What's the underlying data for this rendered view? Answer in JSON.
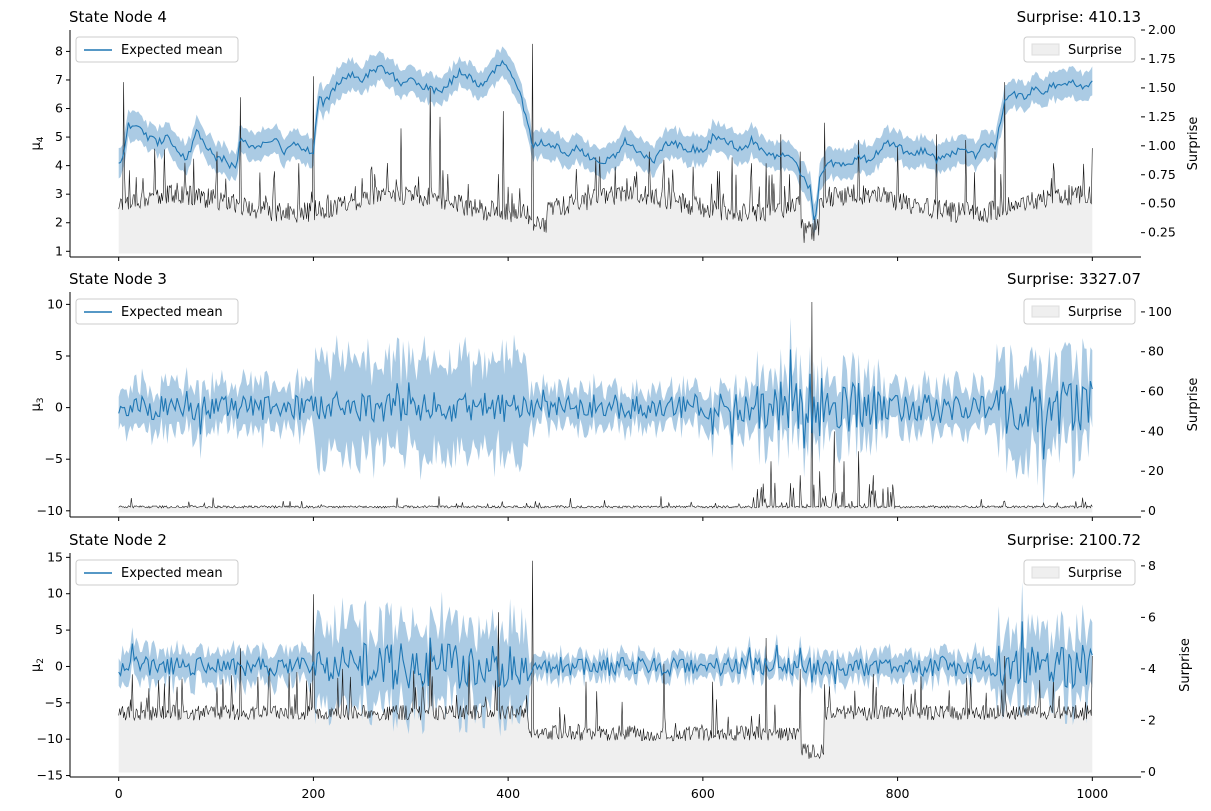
{
  "chart_data": [
    {
      "type": "line",
      "title": "State Node 4",
      "surprise_text": "Surprise: 410.13",
      "ylabel": "μ",
      "ylabel_sub": "4",
      "ylabel_right": "Surprise",
      "xlim": [
        -50,
        1050
      ],
      "ylim": [
        0.8,
        8.75
      ],
      "ylim_right": [
        0.04,
        2.0
      ],
      "yticks": [
        1,
        2,
        3,
        4,
        5,
        6,
        7,
        8
      ],
      "yticks_right": [
        0.25,
        0.5,
        0.75,
        1.0,
        1.25,
        1.5,
        1.75,
        2.0
      ],
      "ytick_right_labels": [
        "0.25",
        "0.50",
        "0.75",
        "1.00",
        "1.25",
        "1.50",
        "1.75",
        "2.00"
      ],
      "legend_left": "Expected mean",
      "legend_right": "Surprise",
      "legend_placement": [
        "upper-left",
        "upper-right"
      ],
      "mean_line": {
        "name": "Expected mean",
        "x": [
          0,
          5,
          10,
          20,
          30,
          40,
          50,
          60,
          70,
          80,
          90,
          100,
          110,
          115,
          120,
          125,
          130,
          140,
          150,
          160,
          170,
          180,
          190,
          200,
          205,
          210,
          220,
          230,
          240,
          250,
          260,
          270,
          280,
          290,
          300,
          310,
          320,
          330,
          340,
          350,
          360,
          370,
          380,
          390,
          400,
          410,
          420,
          425,
          430,
          440,
          450,
          460,
          470,
          480,
          490,
          500,
          510,
          520,
          530,
          540,
          550,
          560,
          570,
          580,
          590,
          600,
          610,
          620,
          630,
          640,
          650,
          660,
          670,
          680,
          690,
          700,
          710,
          715,
          720,
          730,
          740,
          750,
          760,
          770,
          780,
          790,
          800,
          810,
          820,
          830,
          840,
          850,
          860,
          870,
          880,
          890,
          900,
          910,
          920,
          930,
          940,
          950,
          960,
          970,
          980,
          990,
          1000
        ],
        "y": [
          4.0,
          4.3,
          5.4,
          5.3,
          5.0,
          4.8,
          5.0,
          4.6,
          4.2,
          5.2,
          4.7,
          4.3,
          4.2,
          4.0,
          3.9,
          4.9,
          4.8,
          4.6,
          4.8,
          5.0,
          4.5,
          4.8,
          4.6,
          4.5,
          6.4,
          6.2,
          6.6,
          7.1,
          7.2,
          7.0,
          7.3,
          7.4,
          7.2,
          6.9,
          7.0,
          6.8,
          6.7,
          6.6,
          6.9,
          7.3,
          7.1,
          6.8,
          7.0,
          7.6,
          7.5,
          6.7,
          5.6,
          4.6,
          4.8,
          4.8,
          4.7,
          4.3,
          4.6,
          4.4,
          4.1,
          4.2,
          4.3,
          4.9,
          4.6,
          4.3,
          4.2,
          4.7,
          4.8,
          4.6,
          4.6,
          4.5,
          5.0,
          4.9,
          4.8,
          4.5,
          4.9,
          4.6,
          4.3,
          4.4,
          4.4,
          3.8,
          3.2,
          1.8,
          3.6,
          4.1,
          4.0,
          4.1,
          4.3,
          4.2,
          4.5,
          4.8,
          4.7,
          4.4,
          4.5,
          4.5,
          4.2,
          4.3,
          4.5,
          4.6,
          4.3,
          4.8,
          4.6,
          6.3,
          6.5,
          6.4,
          6.7,
          6.6,
          6.8,
          6.9,
          6.9,
          6.7,
          7.0
        ]
      },
      "band_halfwidth": 0.5,
      "surprise_baseline": 0.07,
      "surprise_spikes": [
        {
          "x": 5,
          "y": 1.55
        },
        {
          "x": 25,
          "y": 0.72
        },
        {
          "x": 40,
          "y": 0.62
        },
        {
          "x": 60,
          "y": 0.68
        },
        {
          "x": 80,
          "y": 0.62
        },
        {
          "x": 100,
          "y": 0.7
        },
        {
          "x": 125,
          "y": 1.42
        },
        {
          "x": 160,
          "y": 0.78
        },
        {
          "x": 185,
          "y": 0.85
        },
        {
          "x": 200,
          "y": 1.6
        },
        {
          "x": 250,
          "y": 0.72
        },
        {
          "x": 290,
          "y": 1.15
        },
        {
          "x": 320,
          "y": 1.5
        },
        {
          "x": 330,
          "y": 1.25
        },
        {
          "x": 395,
          "y": 1.3
        },
        {
          "x": 425,
          "y": 1.88
        },
        {
          "x": 470,
          "y": 0.8
        },
        {
          "x": 490,
          "y": 0.9
        },
        {
          "x": 510,
          "y": 0.82
        },
        {
          "x": 545,
          "y": 0.95
        },
        {
          "x": 560,
          "y": 0.88
        },
        {
          "x": 590,
          "y": 0.82
        },
        {
          "x": 630,
          "y": 0.9
        },
        {
          "x": 650,
          "y": 0.85
        },
        {
          "x": 665,
          "y": 0.85
        },
        {
          "x": 680,
          "y": 1.1
        },
        {
          "x": 700,
          "y": 0.95
        },
        {
          "x": 725,
          "y": 1.2
        },
        {
          "x": 760,
          "y": 1.05
        },
        {
          "x": 800,
          "y": 1.0
        },
        {
          "x": 840,
          "y": 1.1
        },
        {
          "x": 870,
          "y": 1.05
        },
        {
          "x": 900,
          "y": 0.95
        },
        {
          "x": 910,
          "y": 1.55
        },
        {
          "x": 960,
          "y": 0.85
        },
        {
          "x": 1000,
          "y": 0.98
        }
      ]
    },
    {
      "type": "line",
      "title": "State Node 3",
      "surprise_text": "Surprise: 3327.07",
      "ylabel": "μ",
      "ylabel_sub": "3",
      "ylabel_right": "Surprise",
      "xlim": [
        -50,
        1050
      ],
      "ylim": [
        -10.6,
        11.2
      ],
      "ylim_right": [
        -3,
        110
      ],
      "yticks": [
        -10,
        -5,
        0,
        5,
        10
      ],
      "ytick_labels": [
        "−10",
        "−5",
        "0",
        "5",
        "10"
      ],
      "yticks_right": [
        0,
        20,
        40,
        60,
        80,
        100
      ],
      "ytick_right_labels": [
        "0",
        "20",
        "40",
        "60",
        "80",
        "100"
      ],
      "legend_left": "Expected mean",
      "legend_right": "Surprise",
      "legend_placement": [
        "upper-left",
        "upper-right"
      ],
      "mean_amplitude": [
        {
          "x0": 0,
          "x1": 200,
          "amp": 1.2
        },
        {
          "x0": 200,
          "x1": 420,
          "amp": 1.5
        },
        {
          "x0": 420,
          "x1": 600,
          "amp": 1.1
        },
        {
          "x0": 600,
          "x1": 650,
          "amp": 1.6
        },
        {
          "x0": 650,
          "x1": 780,
          "amp": 2.6
        },
        {
          "x0": 780,
          "x1": 900,
          "amp": 1.3
        },
        {
          "x0": 900,
          "x1": 1000,
          "amp": 2.6
        }
      ],
      "band_halfwidth": [
        {
          "x0": 0,
          "x1": 200,
          "hw": 2.2
        },
        {
          "x0": 200,
          "x1": 420,
          "hw": 4.5
        },
        {
          "x0": 420,
          "x1": 600,
          "hw": 1.8
        },
        {
          "x0": 600,
          "x1": 650,
          "hw": 2.0
        },
        {
          "x0": 650,
          "x1": 780,
          "hw": 2.8
        },
        {
          "x0": 780,
          "x1": 900,
          "hw": 2.0
        },
        {
          "x0": 900,
          "x1": 1000,
          "hw": 4.0
        }
      ],
      "surprise_baseline": 1.5,
      "surprise_spikes": [
        {
          "x": 660,
          "y": 12
        },
        {
          "x": 670,
          "y": 25
        },
        {
          "x": 690,
          "y": 14
        },
        {
          "x": 700,
          "y": 18
        },
        {
          "x": 712,
          "y": 105
        },
        {
          "x": 720,
          "y": 20
        },
        {
          "x": 735,
          "y": 40
        },
        {
          "x": 745,
          "y": 25
        },
        {
          "x": 760,
          "y": 30
        },
        {
          "x": 775,
          "y": 18
        },
        {
          "x": 790,
          "y": 12
        },
        {
          "x": 910,
          "y": 5
        },
        {
          "x": 950,
          "y": 4
        }
      ]
    },
    {
      "type": "line",
      "title": "State Node 2",
      "surprise_text": "Surprise: 2100.72",
      "ylabel": "μ",
      "ylabel_sub": "2",
      "ylabel_right": "Surprise",
      "xlim": [
        -50,
        1050
      ],
      "ylim": [
        -15.2,
        15.6
      ],
      "ylim_right": [
        -0.2,
        8.5
      ],
      "yticks": [
        -15,
        -10,
        -5,
        0,
        5,
        10,
        15
      ],
      "ytick_labels": [
        "−15",
        "−10",
        "−5",
        "0",
        "5",
        "10",
        "15"
      ],
      "yticks_right": [
        0,
        2,
        4,
        6,
        8
      ],
      "ytick_right_labels": [
        "0",
        "2",
        "4",
        "6",
        "8"
      ],
      "xticks": [
        0,
        200,
        400,
        600,
        800,
        1000
      ],
      "xtick_labels": [
        "0",
        "200",
        "400",
        "600",
        "800",
        "1000"
      ],
      "legend_left": "Expected mean",
      "legend_right": "Surprise",
      "legend_placement": [
        "upper-left",
        "upper-right"
      ],
      "mean_amplitude": [
        {
          "x0": 0,
          "x1": 200,
          "amp": 1.3
        },
        {
          "x0": 200,
          "x1": 420,
          "amp": 3.2
        },
        {
          "x0": 420,
          "x1": 700,
          "amp": 1.3
        },
        {
          "x0": 700,
          "x1": 900,
          "amp": 1.4
        },
        {
          "x0": 900,
          "x1": 1000,
          "amp": 3.0
        }
      ],
      "band_halfwidth": [
        {
          "x0": 0,
          "x1": 200,
          "hw": 2.2
        },
        {
          "x0": 200,
          "x1": 420,
          "hw": 5.5
        },
        {
          "x0": 420,
          "x1": 700,
          "hw": 1.5
        },
        {
          "x0": 700,
          "x1": 900,
          "hw": 1.8
        },
        {
          "x0": 900,
          "x1": 1000,
          "hw": 4.5
        }
      ],
      "surprise_baseline": 2.0,
      "surprise_spikes": [
        {
          "x": 60,
          "y": 3.3
        },
        {
          "x": 125,
          "y": 4.8
        },
        {
          "x": 200,
          "y": 6.9
        },
        {
          "x": 230,
          "y": 4.0
        },
        {
          "x": 320,
          "y": 5.0
        },
        {
          "x": 360,
          "y": 4.5
        },
        {
          "x": 390,
          "y": 6.2
        },
        {
          "x": 425,
          "y": 8.2
        },
        {
          "x": 480,
          "y": 3.5
        },
        {
          "x": 560,
          "y": 4.2
        },
        {
          "x": 610,
          "y": 3.5
        },
        {
          "x": 665,
          "y": 5.2
        },
        {
          "x": 700,
          "y": 4.0
        },
        {
          "x": 775,
          "y": 3.8
        },
        {
          "x": 910,
          "y": 4.5
        },
        {
          "x": 960,
          "y": 3.6
        },
        {
          "x": 1000,
          "y": 4.5
        }
      ]
    }
  ],
  "colors": {
    "mean": "#1f77b4",
    "band": "#a6c8e3",
    "surprise_fill": "#efefef",
    "surprise_line": "#1a1a1a",
    "axis": "#000000"
  }
}
